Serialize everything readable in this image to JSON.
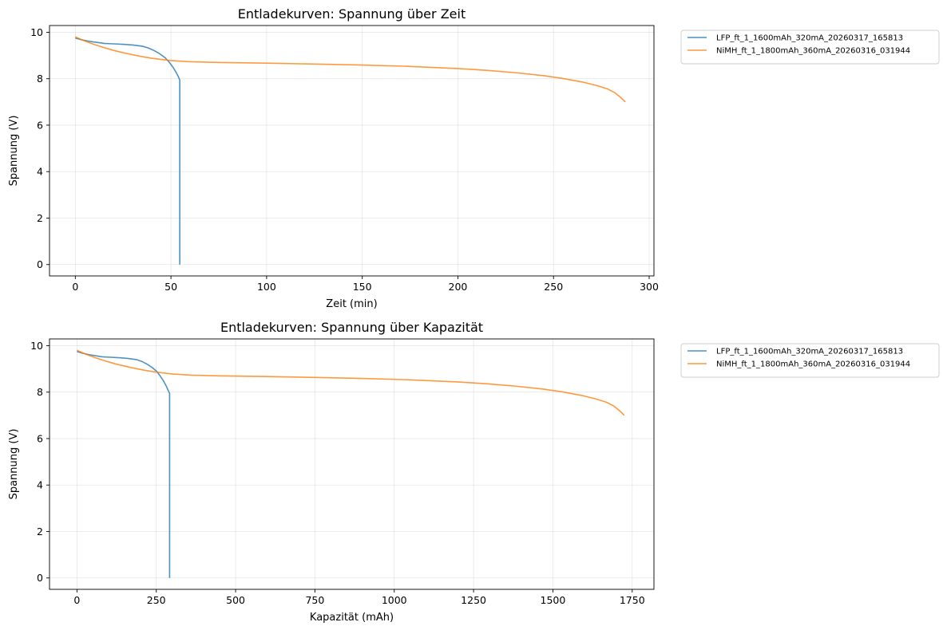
{
  "chart_data": [
    {
      "type": "line",
      "title": "Entladekurven: Spannung über Zeit",
      "xlabel": "Zeit (min)",
      "ylabel": "Spannung (V)",
      "xlim": [
        -13.5,
        302.5
      ],
      "ylim": [
        -0.49,
        10.29
      ],
      "xticks": [
        0,
        50,
        100,
        150,
        200,
        250,
        300
      ],
      "yticks": [
        0,
        2,
        4,
        6,
        8,
        10
      ],
      "grid": true,
      "legend_position": "outside-top-right",
      "series": [
        {
          "name": "LFP_ft_1_1600mAh_320mA_20260317_165813",
          "color": "#1f77b4",
          "x": [
            0,
            3,
            8,
            15,
            20,
            25,
            30,
            35,
            38,
            41,
            44,
            47,
            49,
            51,
            52.5,
            53.5,
            54.3,
            54.6,
            54.6
          ],
          "y": [
            9.75,
            9.68,
            9.6,
            9.52,
            9.5,
            9.48,
            9.45,
            9.4,
            9.33,
            9.22,
            9.08,
            8.9,
            8.72,
            8.5,
            8.3,
            8.15,
            8.0,
            7.95,
            0.0
          ]
        },
        {
          "name": "NiMH_ft_1_1800mAh_360mA_20260316_031944",
          "color": "#ff7f0e",
          "x": [
            0,
            5,
            10,
            15,
            20,
            25,
            30,
            35,
            40,
            45,
            50,
            60,
            75,
            100,
            125,
            150,
            175,
            200,
            215,
            230,
            245,
            255,
            265,
            272,
            278,
            282,
            285,
            287.5
          ],
          "y": [
            9.8,
            9.62,
            9.47,
            9.34,
            9.22,
            9.12,
            9.03,
            8.95,
            8.88,
            8.83,
            8.78,
            8.73,
            8.7,
            8.67,
            8.63,
            8.59,
            8.53,
            8.44,
            8.36,
            8.26,
            8.13,
            8.01,
            7.86,
            7.72,
            7.57,
            7.4,
            7.2,
            7.0
          ]
        }
      ]
    },
    {
      "type": "line",
      "title": "Entladekurven: Spannung über Kapazität",
      "xlabel": "Kapazität (mAh)",
      "ylabel": "Spannung (V)",
      "xlim": [
        -86.5,
        1818.5
      ],
      "ylim": [
        -0.49,
        10.29
      ],
      "xticks": [
        0,
        250,
        500,
        750,
        1000,
        1250,
        1500,
        1750
      ],
      "yticks": [
        0,
        2,
        4,
        6,
        8,
        10
      ],
      "grid": true,
      "legend_position": "outside-top-right",
      "series": [
        {
          "name": "LFP_ft_1_1600mAh_320mA_20260317_165813",
          "color": "#1f77b4",
          "x": [
            0,
            16,
            43,
            80,
            107,
            133,
            160,
            187,
            203,
            219,
            235,
            251,
            261,
            272,
            280,
            285,
            290,
            292,
            292
          ],
          "y": [
            9.75,
            9.68,
            9.6,
            9.52,
            9.5,
            9.48,
            9.45,
            9.4,
            9.33,
            9.22,
            9.08,
            8.9,
            8.72,
            8.5,
            8.3,
            8.15,
            8.0,
            7.95,
            0.0
          ]
        },
        {
          "name": "NiMH_ft_1_1800mAh_360mA_20260316_031944",
          "color": "#ff7f0e",
          "x": [
            0,
            30,
            60,
            90,
            120,
            150,
            180,
            210,
            240,
            270,
            300,
            360,
            450,
            600,
            750,
            900,
            1050,
            1200,
            1290,
            1380,
            1470,
            1530,
            1590,
            1632,
            1668,
            1692,
            1710,
            1725
          ],
          "y": [
            9.8,
            9.62,
            9.47,
            9.34,
            9.22,
            9.12,
            9.03,
            8.95,
            8.88,
            8.83,
            8.78,
            8.73,
            8.7,
            8.67,
            8.63,
            8.59,
            8.53,
            8.44,
            8.36,
            8.26,
            8.13,
            8.01,
            7.86,
            7.72,
            7.57,
            7.4,
            7.2,
            7.0
          ]
        }
      ]
    }
  ]
}
